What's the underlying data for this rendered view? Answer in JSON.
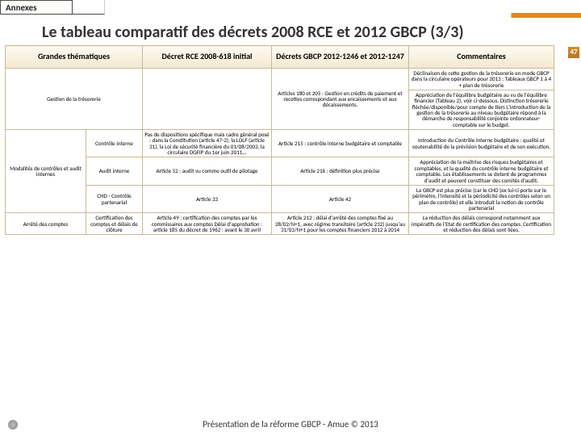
{
  "tab": "Annexes",
  "title": "Le tableau comparatif des décrets 2008 RCE et 2012 GBCP (3/3)",
  "pageNumber": "47",
  "headers": {
    "c1": "Grandes thématiques",
    "c2": "Décret RCE 2008-618 initial",
    "c3": "Décrets GBCP 2012-1246 et 2012-1247",
    "c4": "Commentaires"
  },
  "rows": {
    "r1": {
      "theme": "Gestion de la trésorerie",
      "sub": "",
      "decret": "",
      "gbcp": "Articles 180 et 205 : Gestion en crédits de paiement et recettes correspondant aux encaissements et aux décaissements.",
      "commentA": "Déclinaison de cette gestion de la trésorerie en mode GBCP dans la circulaire opérateurs pour 2013 : Tableaux GBCP 1 à 4 + plan de trésorerie",
      "commentB": "Appréciation de l'équilibre budgétaire au vu de l'équilibre financier (Tableau 2), voir ci-dessous.\nDistinction trésorerie fléchée/disponible/pour compte de tiers\nL'introduction de la gestion de la trésorerie au niveau budgétaire répond à la démarche de responsabilité conjointe ordonnateur-comptable sur le budget."
    },
    "r2": {
      "theme": "Modalités de contrôles et audit internes",
      "subA": "Contrôle interne",
      "decretA": "Pas de dispositions spécifique mais cadre général posé : dans la Constitution (article 47-2), la LOLF (article 31), la Loi de sécurité financière du 01/08/2003, la circulaire DGFIP du 1er juin 2011...",
      "gbcpA": "Article 215 : contrôle interne budgétaire et comptable",
      "commentA": "Introduction du Contrôle interne budgétaire : qualité et soutenabilité de la prévision budgétaire et de son exécution.",
      "subB": "Audit interne",
      "decretB": "Article 52 : audit vu comme outil de pilotage",
      "gbcpB": "Article 216 : définition plus précise",
      "commentB": "Appréciation de la maîtrise des risques budgétaires et comptables, et la qualité du contrôle interne budgétaire et comptable.\nLes établissements se dotent de programmes d'audit et peuvent constituer des comités d'audit.",
      "subC": "CHD - Contrôle partenarial",
      "decretC": "Article 33",
      "gbcpC": "Article 42",
      "commentC": "La GBCP est plus précise (car le CHD (ex lui-ci porte sur le périmètre, l'intensité et la périodicité des contrôles selon un plan de contrôle) et elle introduit la notion de contrôle partenarial"
    },
    "r3": {
      "theme": "Arrêté des comptes",
      "sub": "Certification des comptes et délais de clôture",
      "decret": "Article 49 : certification des comptes par les commissaires aux comptes Délai d'approbation : article 185 du décret de 1962 : avant le 30 avril",
      "gbcp": "Article 212 : délai d'arrêté des comptes fixé au 28/02/N+1, avec régime transitoire (article 232) jusqu'au 31/03/N+1 pour les comptes financiers 2012 à 2014",
      "comment": "La réduction des délais correspond notamment aux impératifs de l'Etat de certification des comptes. Certification et réduction des délais sont liées."
    }
  },
  "footer": "Présentation de la réforme GBCP - Amue © 2013"
}
